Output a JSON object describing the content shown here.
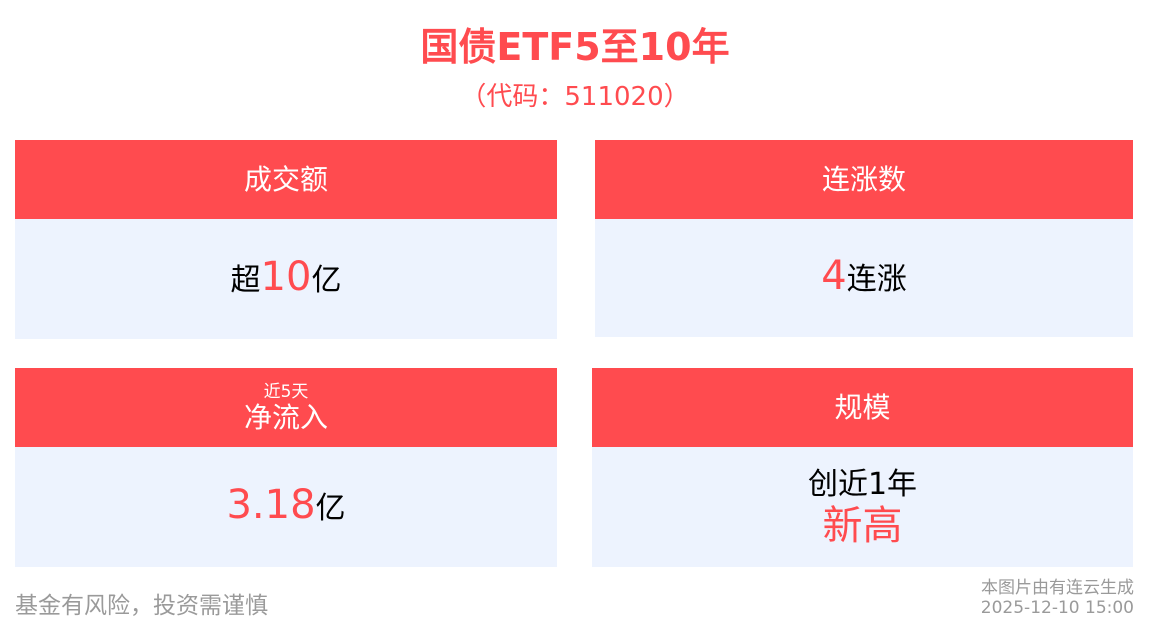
{
  "header": {
    "title": "国债ETF5至10年",
    "subtitle": "（代码：511020）"
  },
  "cards": [
    {
      "label": "成交额",
      "prefix": "超",
      "value": "10",
      "unit": "亿"
    },
    {
      "label": "连涨数",
      "value": "4",
      "unit": "连涨"
    },
    {
      "sublabel": "近5天",
      "label": "净流入",
      "value": "3.18",
      "unit": "亿"
    },
    {
      "label": "规模",
      "line1": "创近1年",
      "line2": "新高"
    }
  ],
  "footer": {
    "disclaimer": "基金有风险，投资需谨慎",
    "source": "本图片由有连云生成",
    "timestamp": "2025-12-10 15:00"
  },
  "colors": {
    "accent": "#ff4b4f",
    "card_body": "#edf3fe",
    "footer_text": "#9a9a9a"
  }
}
